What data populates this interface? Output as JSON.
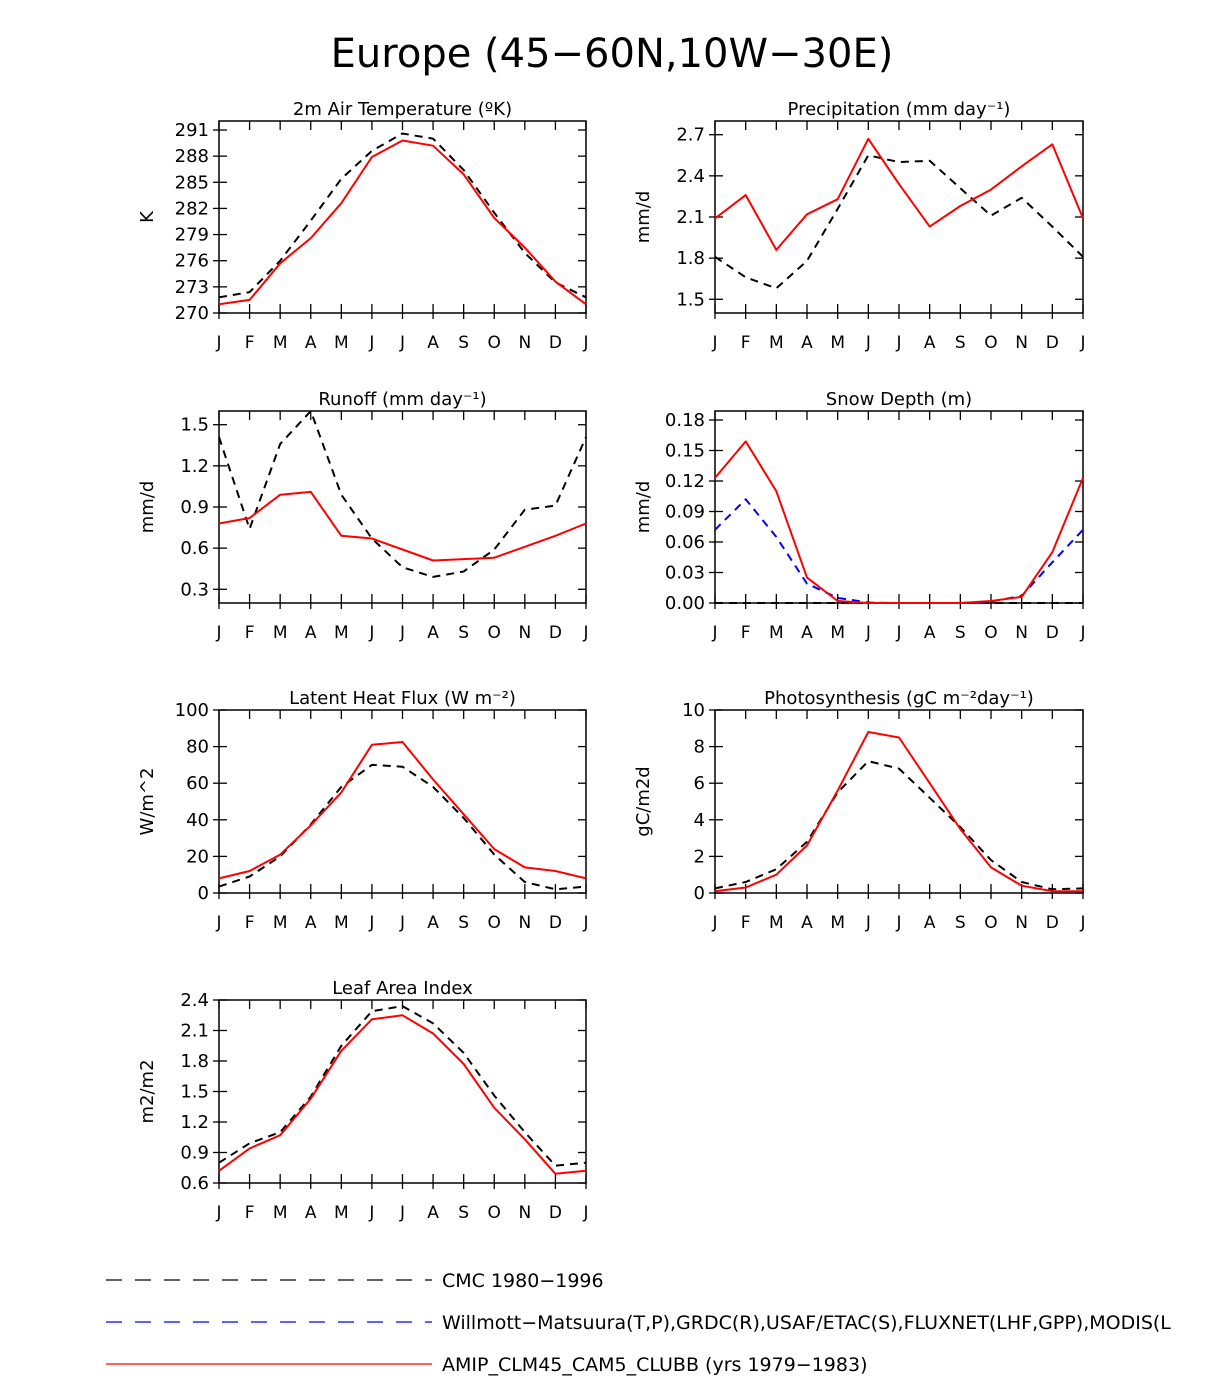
{
  "title": "Europe (45−60N,10W−30E)",
  "months": [
    "J",
    "F",
    "M",
    "A",
    "M",
    "J",
    "J",
    "A",
    "S",
    "O",
    "N",
    "D",
    "J"
  ],
  "colors": {
    "obs_black": "#000000",
    "obs_blue": "#0000ff",
    "model_red": "#ff0000"
  },
  "legend": [
    {
      "label": "CMC 1980−1996",
      "color": "#000000",
      "style": "dashed"
    },
    {
      "label": "Willmott−Matsuura(T,P),GRDC(R),USAF/ETAC(S),FLUXNET(LHF,GPP),MODIS(L",
      "color": "#0000ff",
      "style": "dashed"
    },
    {
      "label": "AMIP_CLM45_CAM5_CLUBB (yrs 1979−1983)",
      "color": "#ff0000",
      "style": "solid"
    }
  ],
  "chart_data": [
    {
      "type": "line",
      "title": "2m Air Temperature (ºK)",
      "ylabel": "K",
      "ylim": [
        270,
        291
      ],
      "yticks": [
        270,
        273,
        276,
        279,
        282,
        285,
        288,
        291
      ],
      "series": [
        {
          "name": "CMC 1980−1996",
          "color": "#000000",
          "style": "dashed",
          "values": [
            271.8,
            272.4,
            276.0,
            280.6,
            285.4,
            288.6,
            290.6,
            290.0,
            286.4,
            281.5,
            276.9,
            273.5,
            271.8
          ]
        },
        {
          "name": "AMIP_CLM45_CAM5_CLUBB (yrs 1979−1983)",
          "color": "#ff0000",
          "style": "solid",
          "values": [
            271.0,
            271.5,
            275.7,
            278.6,
            282.6,
            287.9,
            289.8,
            289.2,
            285.9,
            280.9,
            277.5,
            273.6,
            271.0
          ]
        }
      ]
    },
    {
      "type": "line",
      "title": "Precipitation (mm day⁻¹)",
      "ylabel": "mm/d",
      "ylim": [
        1.4,
        2.8
      ],
      "yticks": [
        1.5,
        1.8,
        2.1,
        2.4,
        2.7
      ],
      "series": [
        {
          "name": "CMC 1980−1996",
          "color": "#000000",
          "style": "dashed",
          "values": [
            1.81,
            1.66,
            1.58,
            1.78,
            2.16,
            2.55,
            2.5,
            2.51,
            2.31,
            2.11,
            2.24,
            2.03,
            1.81
          ]
        },
        {
          "name": "AMIP_CLM45_CAM5_CLUBB (yrs 1979−1983)",
          "color": "#ff0000",
          "style": "solid",
          "values": [
            2.09,
            2.26,
            1.86,
            2.12,
            2.23,
            2.67,
            2.34,
            2.03,
            2.18,
            2.3,
            2.47,
            2.63,
            2.09
          ]
        }
      ]
    },
    {
      "type": "line",
      "title": "Runoff (mm day⁻¹)",
      "ylabel": "mm/d",
      "ylim": [
        0.2,
        1.6
      ],
      "yticks": [
        0.3,
        0.6,
        0.9,
        1.2,
        1.5
      ],
      "series": [
        {
          "name": "CMC 1980−1996",
          "color": "#000000",
          "style": "dashed",
          "values": [
            1.41,
            0.74,
            1.36,
            1.6,
            0.99,
            0.67,
            0.46,
            0.39,
            0.43,
            0.59,
            0.88,
            0.91,
            1.41
          ]
        },
        {
          "name": "AMIP_CLM45_CAM5_CLUBB (yrs 1979−1983)",
          "color": "#ff0000",
          "style": "solid",
          "values": [
            0.78,
            0.82,
            0.99,
            1.01,
            0.69,
            0.67,
            0.59,
            0.51,
            0.52,
            0.53,
            0.61,
            0.69,
            0.78
          ]
        }
      ]
    },
    {
      "type": "line",
      "title": "Snow Depth (m)",
      "ylabel": "mm/d",
      "ylim": [
        0,
        0.18
      ],
      "yticks": [
        "0.00",
        "0.03",
        "0.06",
        "0.09",
        "0.12",
        "0.15",
        "0.18"
      ],
      "series": [
        {
          "name": "CMC 1980−1996",
          "color": "#000000",
          "style": "dashed",
          "values": [
            0,
            0,
            0,
            0,
            0,
            0,
            0,
            0,
            0,
            0,
            0,
            0,
            0
          ]
        },
        {
          "name": "Willmott−Matsuura(T,P),GRDC(R),USAF/ETAC(S),FLUXNET(LHF,GPP),MODIS(L",
          "color": "#0000ff",
          "style": "dashed",
          "values": [
            0.072,
            0.102,
            0.065,
            0.019,
            0.005,
            0.0005,
            0,
            0,
            0,
            0.0015,
            0.007,
            0.04,
            0.072
          ]
        },
        {
          "name": "AMIP_CLM45_CAM5_CLUBB (yrs 1979−1983)",
          "color": "#ff0000",
          "style": "solid",
          "values": [
            0.123,
            0.159,
            0.11,
            0.025,
            0.002,
            0,
            0,
            0,
            0,
            0.002,
            0.006,
            0.05,
            0.123
          ]
        }
      ]
    },
    {
      "type": "line",
      "title": "Latent Heat Flux (W m⁻²)",
      "ylabel": "W/m^2",
      "ylim": [
        0,
        100
      ],
      "yticks": [
        0,
        20,
        40,
        60,
        80,
        100
      ],
      "series": [
        {
          "name": "CMC 1980−1996",
          "color": "#000000",
          "style": "dashed",
          "values": [
            3.5,
            9.0,
            20.0,
            37.5,
            58.0,
            70.0,
            69.0,
            58.0,
            41.0,
            21.0,
            6.0,
            2.0,
            3.5
          ]
        },
        {
          "name": "AMIP_CLM45_CAM5_CLUBB (yrs 1979−1983)",
          "color": "#ff0000",
          "style": "solid",
          "values": [
            8.0,
            12.0,
            21.0,
            37.0,
            55.0,
            81.0,
            82.5,
            62.0,
            43.0,
            24.0,
            14.0,
            12.0,
            8.0
          ]
        }
      ]
    },
    {
      "type": "line",
      "title": "Photosynthesis (gC m⁻²day⁻¹)",
      "ylabel": "gC/m2d",
      "ylim": [
        0,
        10
      ],
      "yticks": [
        0,
        2,
        4,
        6,
        8,
        10
      ],
      "series": [
        {
          "name": "CMC 1980−1996",
          "color": "#000000",
          "style": "dashed",
          "values": [
            0.25,
            0.6,
            1.3,
            2.8,
            5.5,
            7.2,
            6.8,
            5.2,
            3.6,
            1.8,
            0.6,
            0.2,
            0.25
          ]
        },
        {
          "name": "AMIP_CLM45_CAM5_CLUBB (yrs 1979−1983)",
          "color": "#ff0000",
          "style": "solid",
          "values": [
            0.1,
            0.3,
            1.0,
            2.6,
            5.6,
            8.8,
            8.5,
            6.0,
            3.5,
            1.4,
            0.4,
            0.1,
            0.1
          ]
        }
      ]
    },
    {
      "type": "line",
      "title": "Leaf Area Index",
      "ylabel": "m2/m2",
      "ylim": [
        0.6,
        2.4
      ],
      "yticks": [
        0.6,
        0.9,
        1.2,
        1.5,
        1.8,
        2.1,
        2.4
      ],
      "series": [
        {
          "name": "CMC 1980−1996",
          "color": "#000000",
          "style": "dashed",
          "values": [
            0.8,
            0.99,
            1.1,
            1.45,
            1.95,
            2.29,
            2.34,
            2.17,
            1.88,
            1.46,
            1.1,
            0.77,
            0.8
          ]
        },
        {
          "name": "AMIP_CLM45_CAM5_CLUBB (yrs 1979−1983)",
          "color": "#ff0000",
          "style": "solid",
          "values": [
            0.72,
            0.94,
            1.07,
            1.43,
            1.9,
            2.21,
            2.25,
            2.07,
            1.77,
            1.34,
            1.03,
            0.69,
            0.72
          ]
        }
      ]
    }
  ]
}
